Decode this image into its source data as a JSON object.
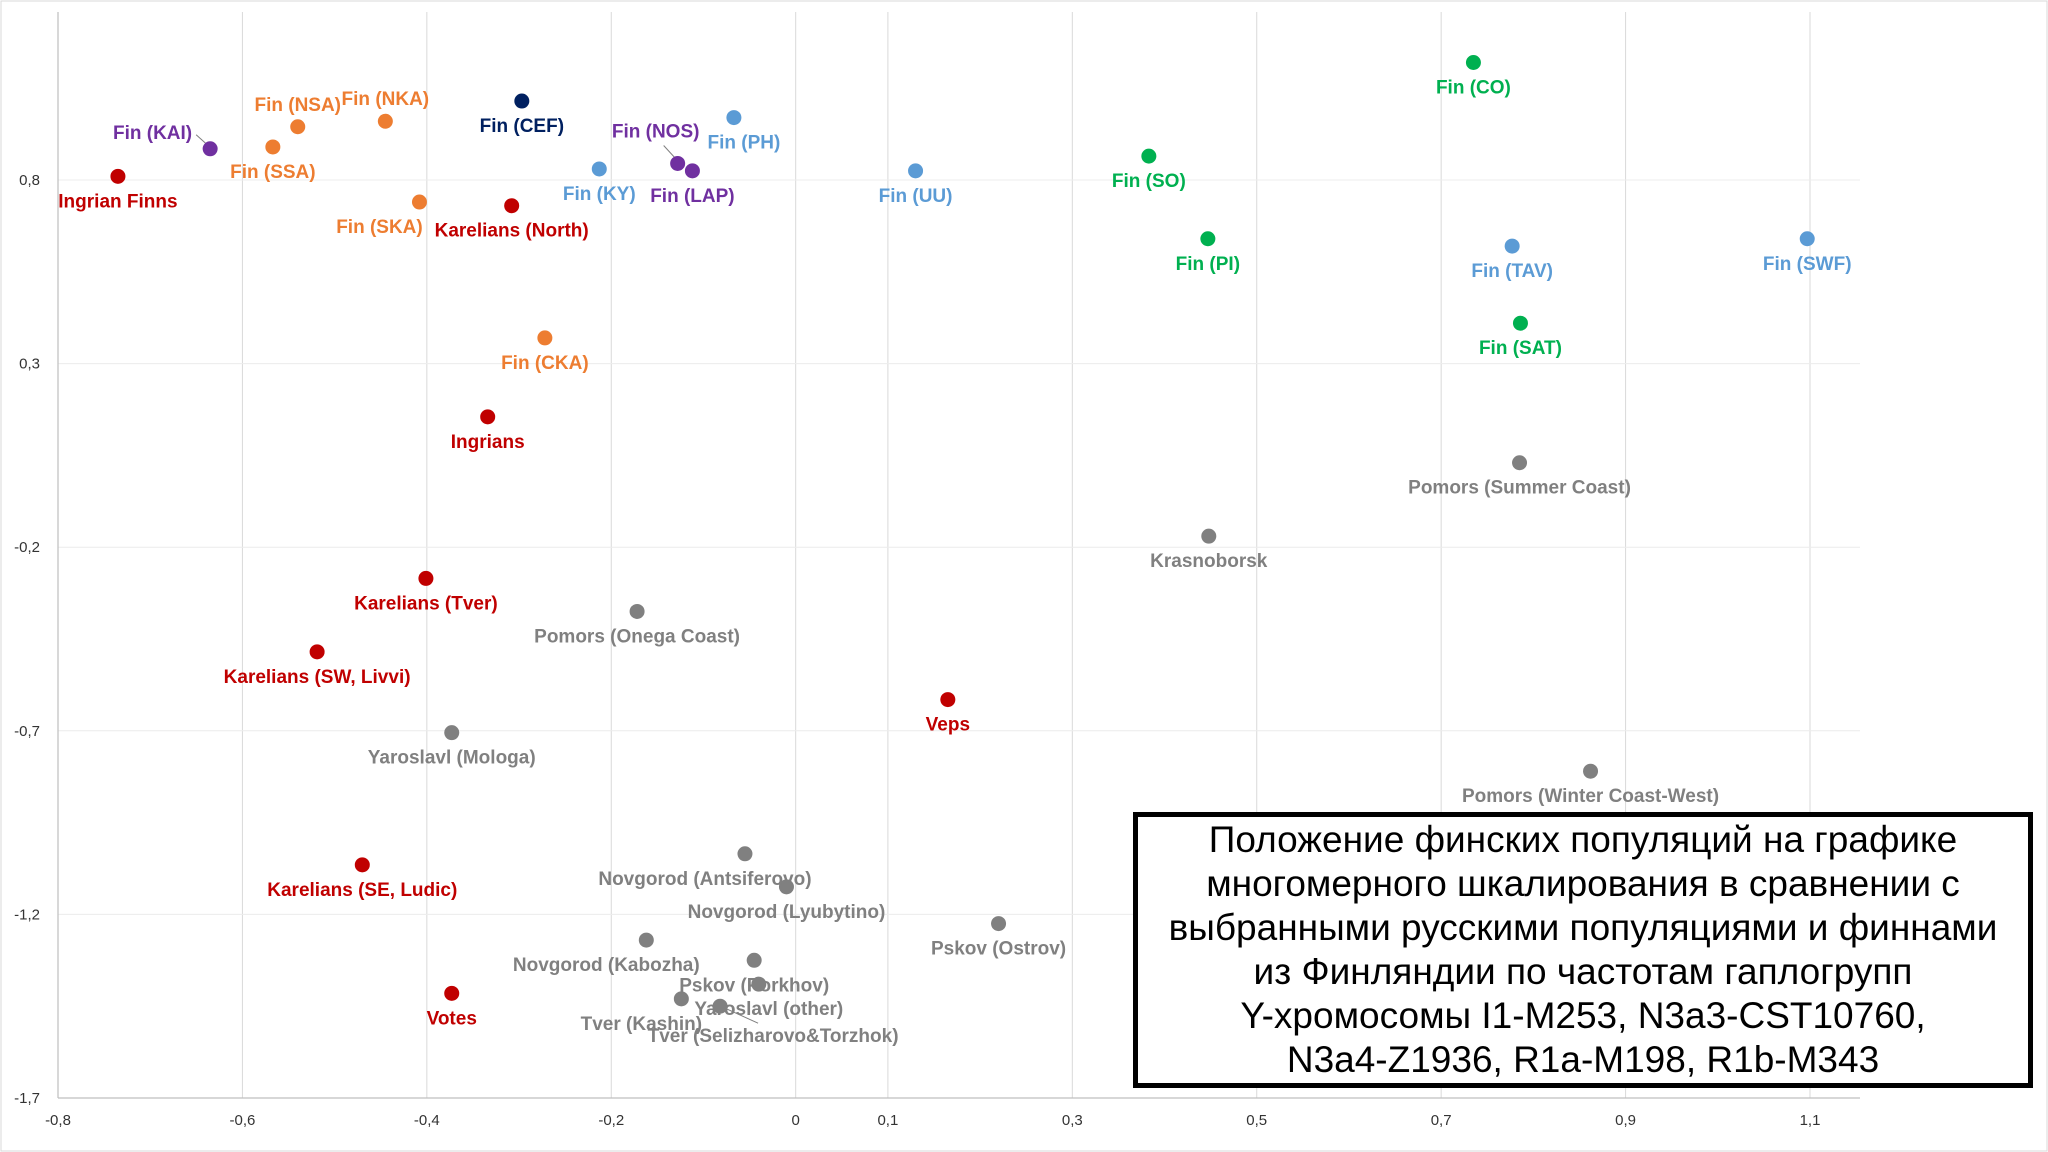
{
  "colors": {
    "red": "#c00000",
    "orange": "#ed7d31",
    "purple": "#7030a0",
    "navy": "#002060",
    "lightblue": "#5b9bd5",
    "green": "#00b050",
    "gray": "#808080",
    "grid": "#d9d9d9",
    "axis": "#bfbfbf"
  },
  "caption": {
    "text": "Положение финских популяций на графике многомерного шкалирования в сравнении с выбранными русскими популяциями и финнами из Финляндии по частотам гаплогрупп Y-хромосомы I1-M253, N3a3-CST10760, N3a4-Z1936, R1a-M198, R1b-M343"
  },
  "chart_data": {
    "type": "scatter",
    "title": "",
    "xlabel": "",
    "ylabel": "",
    "xlim": [
      -0.8,
      1.15
    ],
    "ylim": [
      -1.7,
      1.25
    ],
    "x_ticks": [
      -0.8,
      -0.6,
      -0.4,
      -0.2,
      0,
      0.1,
      0.3,
      0.5,
      0.7,
      0.9,
      1.1
    ],
    "x_tick_labels": [
      "-0,8",
      "-0,6",
      "-0,4",
      "-0,2",
      "0",
      "0,1",
      "0,3",
      "0,5",
      "0,7",
      "0,9",
      "1,1"
    ],
    "y_ticks": [
      0.8,
      0.3,
      -0.2,
      -0.7,
      -1.2,
      -1.7
    ],
    "y_tick_labels": [
      "0,8",
      "0,3",
      "-0,2",
      "-0,7",
      "-1,2",
      "-1,7"
    ],
    "grid": "vertical",
    "points": [
      {
        "label": "Ingrian Finns",
        "x": -0.735,
        "y": 0.81,
        "group": "red",
        "anchor": "below"
      },
      {
        "label": "Fin (KAI)",
        "x": -0.635,
        "y": 0.885,
        "group": "purple",
        "anchor": "left-leader"
      },
      {
        "label": "Fin (SSA)",
        "x": -0.567,
        "y": 0.89,
        "group": "orange",
        "anchor": "below"
      },
      {
        "label": "Fin (NSA)",
        "x": -0.54,
        "y": 0.945,
        "group": "orange",
        "anchor": "above"
      },
      {
        "label": "Fin (NKA)",
        "x": -0.445,
        "y": 0.96,
        "group": "orange",
        "anchor": "above"
      },
      {
        "label": "Fin (SKA)",
        "x": -0.408,
        "y": 0.74,
        "group": "orange",
        "anchor": "below-left"
      },
      {
        "label": "Fin (CEF)",
        "x": -0.297,
        "y": 1.015,
        "group": "navy",
        "anchor": "below"
      },
      {
        "label": "Karelians (North)",
        "x": -0.308,
        "y": 0.73,
        "group": "red",
        "anchor": "below"
      },
      {
        "label": "Fin (KY)",
        "x": -0.213,
        "y": 0.83,
        "group": "lightblue",
        "anchor": "below"
      },
      {
        "label": "Fin (NOS)",
        "x": -0.128,
        "y": 0.845,
        "group": "purple",
        "anchor": "above-leader"
      },
      {
        "label": "Fin (LAP)",
        "x": -0.112,
        "y": 0.825,
        "group": "purple",
        "anchor": "below"
      },
      {
        "label": "Fin (PH)",
        "x": -0.067,
        "y": 0.97,
        "group": "lightblue",
        "anchor": "below-right"
      },
      {
        "label": "Fin (UU)",
        "x": 0.13,
        "y": 0.825,
        "group": "lightblue",
        "anchor": "below"
      },
      {
        "label": "Fin (SO)",
        "x": 0.383,
        "y": 0.865,
        "group": "green",
        "anchor": "below"
      },
      {
        "label": "Fin (PI)",
        "x": 0.447,
        "y": 0.64,
        "group": "green",
        "anchor": "below"
      },
      {
        "label": "Fin (CO)",
        "x": 0.735,
        "y": 1.12,
        "group": "green",
        "anchor": "below"
      },
      {
        "label": "Fin (TAV)",
        "x": 0.777,
        "y": 0.62,
        "group": "lightblue",
        "anchor": "below"
      },
      {
        "label": "Fin (SAT)",
        "x": 0.786,
        "y": 0.41,
        "group": "green",
        "anchor": "below"
      },
      {
        "label": "Fin (SWF)",
        "x": 1.097,
        "y": 0.64,
        "group": "lightblue",
        "anchor": "below"
      },
      {
        "label": "Fin (CKA)",
        "x": -0.272,
        "y": 0.37,
        "group": "orange",
        "anchor": "below"
      },
      {
        "label": "Ingrians",
        "x": -0.334,
        "y": 0.155,
        "group": "red",
        "anchor": "below"
      },
      {
        "label": "Pomors (Summer Coast)",
        "x": 0.785,
        "y": 0.03,
        "group": "gray",
        "anchor": "below"
      },
      {
        "label": "Krasnoborsk",
        "x": 0.448,
        "y": -0.17,
        "group": "gray",
        "anchor": "below"
      },
      {
        "label": "Karelians (Tver)",
        "x": -0.401,
        "y": -0.285,
        "group": "red",
        "anchor": "below"
      },
      {
        "label": "Pomors (Onega Coast)",
        "x": -0.172,
        "y": -0.375,
        "group": "gray",
        "anchor": "below"
      },
      {
        "label": "Karelians (SW, Livvi)",
        "x": -0.519,
        "y": -0.485,
        "group": "red",
        "anchor": "below"
      },
      {
        "label": "Veps",
        "x": 0.165,
        "y": -0.615,
        "group": "red",
        "anchor": "below"
      },
      {
        "label": "Yaroslavl (Mologa)",
        "x": -0.373,
        "y": -0.705,
        "group": "gray",
        "anchor": "below"
      },
      {
        "label": "Pomors (Winter Coast-West)",
        "x": 0.862,
        "y": -0.81,
        "group": "gray",
        "anchor": "below"
      },
      {
        "label": "Novgorod (Antsiferovo)",
        "x": -0.055,
        "y": -1.035,
        "group": "gray",
        "anchor": "below-left"
      },
      {
        "label": "Novgorod (Lyubytino)",
        "x": -0.01,
        "y": -1.125,
        "group": "gray",
        "anchor": "below"
      },
      {
        "label": "Karelians (SE, Ludic)",
        "x": -0.47,
        "y": -1.065,
        "group": "red",
        "anchor": "below"
      },
      {
        "label": "Pskov (Ostrov)",
        "x": 0.22,
        "y": -1.225,
        "group": "gray",
        "anchor": "below"
      },
      {
        "label": "Novgorod (Kabozha)",
        "x": -0.162,
        "y": -1.27,
        "group": "gray",
        "anchor": "below-left"
      },
      {
        "label": "Pskov (Porkhov)",
        "x": -0.045,
        "y": -1.325,
        "group": "gray",
        "anchor": "below"
      },
      {
        "label": "Yaroslavl (other)",
        "x": -0.04,
        "y": -1.39,
        "group": "gray",
        "anchor": "below-right"
      },
      {
        "label": "Votes",
        "x": -0.373,
        "y": -1.415,
        "group": "red",
        "anchor": "below"
      },
      {
        "label": "Tver (Kashin)",
        "x": -0.124,
        "y": -1.43,
        "group": "gray",
        "anchor": "below-left"
      },
      {
        "label": "Tver (Selizharovo&Torzhok)",
        "x": -0.082,
        "y": -1.45,
        "group": "gray",
        "anchor": "below-leader"
      }
    ]
  }
}
